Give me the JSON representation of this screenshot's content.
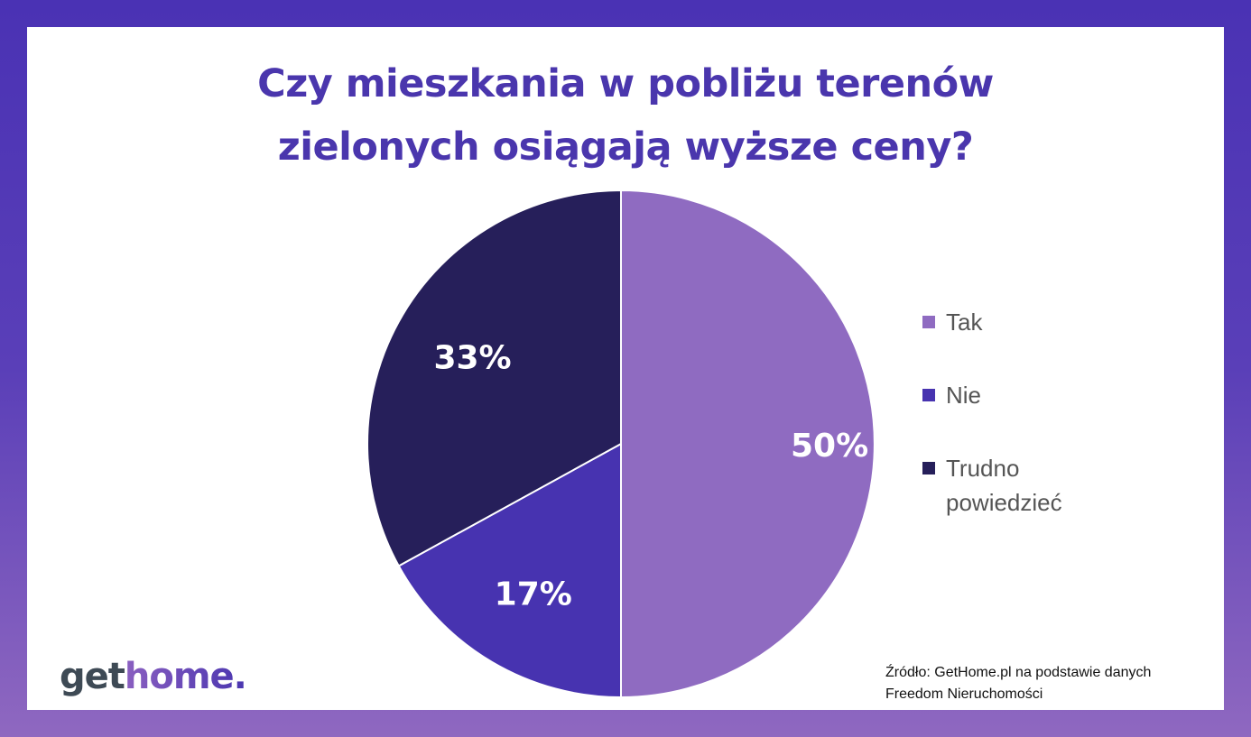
{
  "title_line1": "Czy mieszkania w pobliżu terenów",
  "title_line2": "zielonych osiągają wyższe ceny?",
  "chart_data": {
    "type": "pie",
    "title": "Czy mieszkania w pobliżu terenów zielonych osiągają wyższe ceny?",
    "legend_position": "right",
    "slices": [
      {
        "label": "Tak",
        "value": 50,
        "display": "50%",
        "color": "#8f6bc1"
      },
      {
        "label": "Nie",
        "value": 17,
        "display": "17%",
        "color": "#4733b0"
      },
      {
        "label": "Trudno powiedzieć",
        "label_line1": "Trudno",
        "label_line2": "powiedzieć",
        "value": 33,
        "display": "33%",
        "color": "#261f5a"
      }
    ]
  },
  "logo": {
    "part1": "get",
    "part2": "home."
  },
  "source": {
    "line1": "Źródło: GetHome.pl na podstawie danych",
    "line2": "Freedom Nieruchomości"
  }
}
